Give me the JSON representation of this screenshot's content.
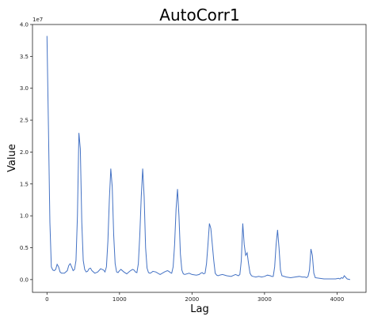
{
  "chart_data": {
    "type": "line",
    "title": "AutoCorr1",
    "xlabel": "Lag",
    "ylabel": "Value",
    "y_scale_label": "1e7",
    "xlim": [
      -200,
      4400
    ],
    "ylim": [
      -0.2,
      4.0
    ],
    "x_ticks": [
      0,
      1000,
      2000,
      3000,
      4000
    ],
    "y_ticks": [
      0.0,
      0.5,
      1.0,
      1.5,
      2.0,
      2.5,
      3.0,
      3.5,
      4.0
    ],
    "x_tick_labels": [
      "0",
      "1000",
      "2000",
      "3000",
      "4000"
    ],
    "y_tick_labels": [
      "0.0",
      "0.5",
      "1.0",
      "1.5",
      "2.0",
      "2.5",
      "3.0",
      "3.5",
      "4.0"
    ],
    "grid": false,
    "line_color": "#4472c4",
    "series": [
      {
        "x": [
          0,
          20,
          40,
          60,
          80,
          100,
          120,
          140,
          160,
          180,
          200,
          240,
          280,
          300,
          320,
          340,
          360,
          380,
          400,
          420,
          440,
          460,
          480,
          500,
          520,
          540,
          560,
          580,
          600,
          620,
          660,
          700,
          740,
          780,
          800,
          820,
          840,
          860,
          880,
          900,
          920,
          940,
          960,
          980,
          1000,
          1020,
          1060,
          1100,
          1140,
          1180,
          1200,
          1220,
          1240,
          1260,
          1280,
          1300,
          1320,
          1340,
          1360,
          1380,
          1400,
          1420,
          1440,
          1460,
          1500,
          1560,
          1620,
          1660,
          1680,
          1700,
          1720,
          1740,
          1760,
          1780,
          1800,
          1820,
          1840,
          1860,
          1880,
          1900,
          1960,
          2000,
          2060,
          2100,
          2120,
          2140,
          2160,
          2180,
          2200,
          2220,
          2240,
          2260,
          2280,
          2300,
          2320,
          2340,
          2360,
          2380,
          2420,
          2480,
          2540,
          2580,
          2600,
          2620,
          2640,
          2660,
          2680,
          2700,
          2720,
          2740,
          2760,
          2780,
          2800,
          2820,
          2840,
          2880,
          2920,
          2960,
          3000,
          3040,
          3080,
          3100,
          3120,
          3140,
          3160,
          3180,
          3200,
          3220,
          3240,
          3300,
          3360,
          3420,
          3480,
          3520,
          3560,
          3580,
          3600,
          3620,
          3640,
          3660,
          3680,
          3700,
          3760,
          3820,
          3880,
          3940,
          3980,
          4020,
          4040,
          4060,
          4080,
          4100,
          4140,
          4180
        ],
        "y": [
          3.82,
          2.4,
          0.9,
          0.2,
          0.15,
          0.14,
          0.16,
          0.24,
          0.2,
          0.12,
          0.1,
          0.1,
          0.14,
          0.22,
          0.25,
          0.2,
          0.14,
          0.16,
          0.3,
          1.0,
          2.3,
          2.05,
          0.9,
          0.3,
          0.16,
          0.12,
          0.13,
          0.17,
          0.18,
          0.14,
          0.1,
          0.12,
          0.17,
          0.15,
          0.12,
          0.2,
          0.6,
          1.25,
          1.74,
          1.45,
          0.7,
          0.25,
          0.12,
          0.11,
          0.14,
          0.16,
          0.12,
          0.09,
          0.13,
          0.16,
          0.15,
          0.12,
          0.11,
          0.25,
          0.7,
          1.3,
          1.74,
          1.3,
          0.5,
          0.18,
          0.11,
          0.1,
          0.11,
          0.13,
          0.12,
          0.08,
          0.12,
          0.14,
          0.13,
          0.11,
          0.1,
          0.2,
          0.55,
          1.1,
          1.42,
          1.0,
          0.4,
          0.15,
          0.09,
          0.08,
          0.1,
          0.08,
          0.07,
          0.08,
          0.1,
          0.11,
          0.09,
          0.1,
          0.25,
          0.55,
          0.88,
          0.8,
          0.55,
          0.3,
          0.1,
          0.07,
          0.06,
          0.07,
          0.08,
          0.06,
          0.05,
          0.07,
          0.08,
          0.07,
          0.06,
          0.08,
          0.3,
          0.88,
          0.55,
          0.38,
          0.42,
          0.25,
          0.1,
          0.06,
          0.05,
          0.04,
          0.05,
          0.04,
          0.05,
          0.07,
          0.06,
          0.05,
          0.05,
          0.2,
          0.55,
          0.78,
          0.5,
          0.15,
          0.06,
          0.04,
          0.03,
          0.04,
          0.05,
          0.04,
          0.04,
          0.03,
          0.05,
          0.15,
          0.48,
          0.38,
          0.1,
          0.03,
          0.02,
          0.01,
          0.01,
          0.01,
          0.01,
          0.02,
          0.01,
          0.03,
          0.02,
          0.06,
          0.01,
          0.0
        ]
      }
    ]
  }
}
